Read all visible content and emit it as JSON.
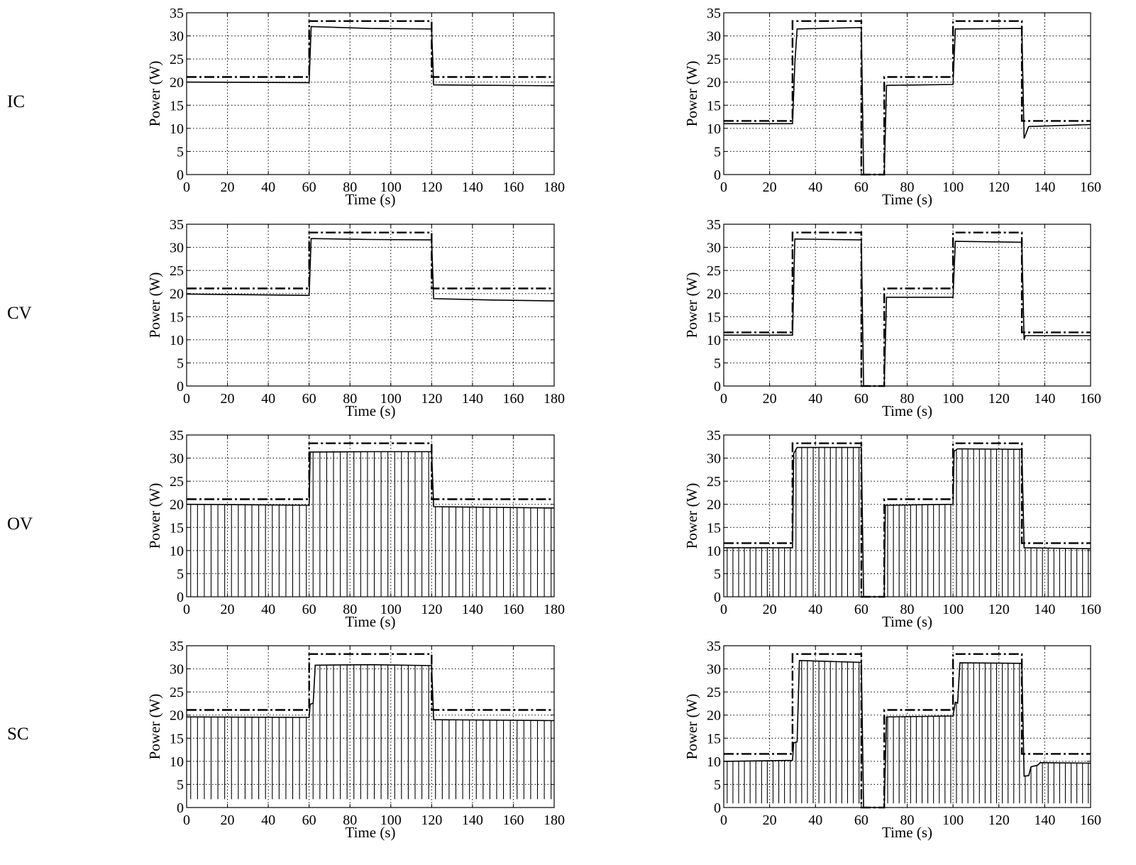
{
  "figure": {
    "row_labels": [
      "IC",
      "CV",
      "OV",
      "SC"
    ]
  },
  "chart_data": [
    {
      "type": "line",
      "panel": "IC-left",
      "method": "IC",
      "ylabel": "Power (W)",
      "xlabel": "Time (s)",
      "xlim": [
        0,
        180
      ],
      "ylim": [
        0,
        35
      ],
      "xticks": [
        0,
        20,
        40,
        60,
        80,
        100,
        120,
        140,
        160,
        180
      ],
      "yticks": [
        0,
        5,
        10,
        15,
        20,
        25,
        30,
        35
      ],
      "grid": true,
      "available": [
        [
          0,
          21.1
        ],
        [
          60,
          21.1
        ],
        [
          60,
          33.2
        ],
        [
          120,
          33.2
        ],
        [
          120,
          21.1
        ],
        [
          180,
          21.1
        ]
      ],
      "tracked": [
        [
          0,
          20.0
        ],
        [
          60,
          19.9
        ],
        [
          61,
          32.0
        ],
        [
          90,
          31.6
        ],
        [
          120,
          31.5
        ],
        [
          121,
          19.4
        ],
        [
          180,
          19.2
        ]
      ],
      "dips": []
    },
    {
      "type": "line",
      "panel": "IC-right",
      "method": "IC",
      "ylabel": "Power (W)",
      "xlabel": "Time (s)",
      "xlim": [
        0,
        160
      ],
      "ylim": [
        0,
        35
      ],
      "xticks": [
        0,
        20,
        40,
        60,
        80,
        100,
        120,
        140,
        160
      ],
      "yticks": [
        0,
        5,
        10,
        15,
        20,
        25,
        30,
        35
      ],
      "grid": true,
      "available": [
        [
          0,
          11.6
        ],
        [
          30,
          11.6
        ],
        [
          30,
          33.2
        ],
        [
          60,
          33.2
        ],
        [
          60,
          0
        ],
        [
          70,
          0
        ],
        [
          70,
          21.1
        ],
        [
          100,
          21.1
        ],
        [
          100,
          33.2
        ],
        [
          130,
          33.2
        ],
        [
          130,
          11.6
        ],
        [
          160,
          11.6
        ]
      ],
      "tracked": [
        [
          0,
          11.0
        ],
        [
          30,
          11.0
        ],
        [
          31,
          24
        ],
        [
          32,
          31.5
        ],
        [
          60,
          31.8
        ],
        [
          61,
          0
        ],
        [
          70,
          0
        ],
        [
          71,
          19.3
        ],
        [
          100,
          19.5
        ],
        [
          101,
          31.5
        ],
        [
          130,
          31.6
        ],
        [
          131,
          7.8
        ],
        [
          133,
          10.4
        ],
        [
          160,
          10.8
        ]
      ],
      "dips": []
    },
    {
      "type": "line",
      "panel": "CV-left",
      "method": "CV",
      "ylabel": "Power (W)",
      "xlabel": "Time (s)",
      "xlim": [
        0,
        180
      ],
      "ylim": [
        0,
        35
      ],
      "xticks": [
        0,
        20,
        40,
        60,
        80,
        100,
        120,
        140,
        160,
        180
      ],
      "yticks": [
        0,
        5,
        10,
        15,
        20,
        25,
        30,
        35
      ],
      "grid": true,
      "available": [
        [
          0,
          21.1
        ],
        [
          60,
          21.1
        ],
        [
          60,
          33.2
        ],
        [
          120,
          33.2
        ],
        [
          120,
          21.1
        ],
        [
          180,
          21.1
        ]
      ],
      "tracked": [
        [
          0,
          19.9
        ],
        [
          60,
          19.6
        ],
        [
          61,
          31.9
        ],
        [
          90,
          31.7
        ],
        [
          120,
          31.6
        ],
        [
          121,
          18.9
        ],
        [
          150,
          18.6
        ],
        [
          180,
          18.4
        ]
      ],
      "dips": []
    },
    {
      "type": "line",
      "panel": "CV-right",
      "method": "CV",
      "ylabel": "Power (W)",
      "xlabel": "Time (s)",
      "xlim": [
        0,
        160
      ],
      "ylim": [
        0,
        35
      ],
      "xticks": [
        0,
        20,
        40,
        60,
        80,
        100,
        120,
        140,
        160
      ],
      "yticks": [
        0,
        5,
        10,
        15,
        20,
        25,
        30,
        35
      ],
      "grid": true,
      "available": [
        [
          0,
          11.6
        ],
        [
          30,
          11.6
        ],
        [
          30,
          33.2
        ],
        [
          60,
          33.2
        ],
        [
          60,
          0
        ],
        [
          70,
          0
        ],
        [
          70,
          21.1
        ],
        [
          100,
          21.1
        ],
        [
          100,
          33.2
        ],
        [
          130,
          33.2
        ],
        [
          130,
          11.6
        ],
        [
          160,
          11.6
        ]
      ],
      "tracked": [
        [
          0,
          11.0
        ],
        [
          30,
          11.0
        ],
        [
          31,
          31.8
        ],
        [
          60,
          31.6
        ],
        [
          61,
          0
        ],
        [
          70,
          0
        ],
        [
          71,
          19.2
        ],
        [
          100,
          19.2
        ],
        [
          101,
          31.3
        ],
        [
          130,
          31.1
        ],
        [
          131,
          10.0
        ],
        [
          131.5,
          10.9
        ],
        [
          160,
          10.9
        ]
      ],
      "dips": []
    },
    {
      "type": "line",
      "panel": "OV-left",
      "method": "OV",
      "ylabel": "Power (W)",
      "xlabel": "Time (s)",
      "xlim": [
        0,
        180
      ],
      "ylim": [
        0,
        35
      ],
      "xticks": [
        0,
        20,
        40,
        60,
        80,
        100,
        120,
        140,
        160,
        180
      ],
      "yticks": [
        0,
        5,
        10,
        15,
        20,
        25,
        30,
        35
      ],
      "grid": true,
      "available": [
        [
          0,
          21.1
        ],
        [
          60,
          21.1
        ],
        [
          60,
          33.2
        ],
        [
          120,
          33.2
        ],
        [
          120,
          21.1
        ],
        [
          180,
          21.1
        ]
      ],
      "tracked": [
        [
          0,
          20.0
        ],
        [
          60,
          19.8
        ],
        [
          60.5,
          31.3
        ],
        [
          90,
          31.4
        ],
        [
          120,
          31.4
        ],
        [
          121,
          19.5
        ],
        [
          180,
          19.2
        ]
      ],
      "dips": {
        "start": 2,
        "step": 3.33,
        "to": 0
      }
    },
    {
      "type": "line",
      "panel": "OV-right",
      "method": "OV",
      "ylabel": "Power (W)",
      "xlabel": "Time (s)",
      "xlim": [
        0,
        160
      ],
      "ylim": [
        0,
        35
      ],
      "xticks": [
        0,
        20,
        40,
        60,
        80,
        100,
        120,
        140,
        160
      ],
      "yticks": [
        0,
        5,
        10,
        15,
        20,
        25,
        30,
        35
      ],
      "grid": true,
      "available": [
        [
          0,
          11.6
        ],
        [
          30,
          11.6
        ],
        [
          30,
          33.2
        ],
        [
          60,
          33.2
        ],
        [
          60,
          0
        ],
        [
          70,
          0
        ],
        [
          70,
          21.1
        ],
        [
          100,
          21.1
        ],
        [
          100,
          33.2
        ],
        [
          130,
          33.2
        ],
        [
          130,
          11.6
        ],
        [
          160,
          11.6
        ]
      ],
      "tracked": [
        [
          0,
          10.6
        ],
        [
          30,
          10.6
        ],
        [
          30.5,
          31.0
        ],
        [
          32,
          32.3
        ],
        [
          60,
          32.3
        ],
        [
          61,
          0
        ],
        [
          70,
          0
        ],
        [
          70.5,
          19.8
        ],
        [
          100,
          20.0
        ],
        [
          100.5,
          31.5
        ],
        [
          102,
          32.0
        ],
        [
          130,
          31.9
        ],
        [
          131,
          10.6
        ],
        [
          160,
          10.4
        ]
      ],
      "dips": {
        "start": 1.5,
        "step": 2.5,
        "to": 0
      }
    },
    {
      "type": "line",
      "panel": "SC-left",
      "method": "SC",
      "ylabel": "Power (W)",
      "xlabel": "Time (s)",
      "xlim": [
        0,
        180
      ],
      "ylim": [
        0,
        35
      ],
      "xticks": [
        0,
        20,
        40,
        60,
        80,
        100,
        120,
        140,
        160,
        180
      ],
      "yticks": [
        0,
        5,
        10,
        15,
        20,
        25,
        30,
        35
      ],
      "grid": true,
      "available": [
        [
          0,
          21.1
        ],
        [
          60,
          21.1
        ],
        [
          60,
          33.2
        ],
        [
          120,
          33.2
        ],
        [
          120,
          21.1
        ],
        [
          180,
          21.1
        ]
      ],
      "tracked": [
        [
          0,
          19.6
        ],
        [
          60,
          19.5
        ],
        [
          60.5,
          22.3
        ],
        [
          62,
          22.6
        ],
        [
          63,
          30.8
        ],
        [
          90,
          30.9
        ],
        [
          120,
          30.7
        ],
        [
          121,
          19.0
        ],
        [
          180,
          18.8
        ]
      ],
      "dips": {
        "start": 2,
        "step": 3.33,
        "to": 1.8
      }
    },
    {
      "type": "line",
      "panel": "SC-right",
      "method": "SC",
      "ylabel": "Power (W)",
      "xlabel": "Time (s)",
      "xlim": [
        0,
        160
      ],
      "ylim": [
        0,
        35
      ],
      "xticks": [
        0,
        20,
        40,
        60,
        80,
        100,
        120,
        140,
        160
      ],
      "yticks": [
        0,
        5,
        10,
        15,
        20,
        25,
        30,
        35
      ],
      "grid": true,
      "available": [
        [
          0,
          11.6
        ],
        [
          30,
          11.6
        ],
        [
          30,
          33.2
        ],
        [
          60,
          33.2
        ],
        [
          60,
          0
        ],
        [
          70,
          0
        ],
        [
          70,
          21.1
        ],
        [
          100,
          21.1
        ],
        [
          100,
          33.2
        ],
        [
          130,
          33.2
        ],
        [
          130,
          11.6
        ],
        [
          160,
          11.6
        ]
      ],
      "tracked": [
        [
          0,
          10.0
        ],
        [
          30,
          10.2
        ],
        [
          30.5,
          14.0
        ],
        [
          32,
          14.2
        ],
        [
          33,
          31.8
        ],
        [
          60,
          31.4
        ],
        [
          61,
          0
        ],
        [
          70,
          0
        ],
        [
          71,
          19.6
        ],
        [
          100,
          19.8
        ],
        [
          101,
          22.8
        ],
        [
          102,
          22.6
        ],
        [
          103,
          31.3
        ],
        [
          130,
          31.2
        ],
        [
          131,
          6.8
        ],
        [
          133,
          6.9
        ],
        [
          134,
          8.8
        ],
        [
          137,
          9.2
        ],
        [
          138,
          9.7
        ],
        [
          160,
          9.6
        ]
      ],
      "dips": {
        "start": 1.5,
        "step": 2.5,
        "to": 0.9
      }
    }
  ]
}
